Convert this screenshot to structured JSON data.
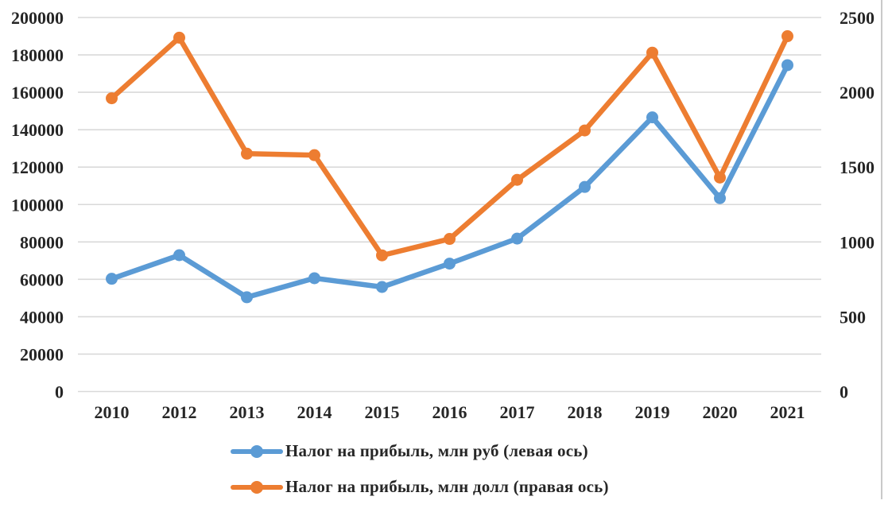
{
  "chart_data": {
    "type": "line",
    "title": "",
    "categories": [
      "2010",
      "2012",
      "2013",
      "2014",
      "2015",
      "2016",
      "2017",
      "2018",
      "2019",
      "2020",
      "2021"
    ],
    "series": [
      {
        "name": "Налог на прибыль, млн руб (левая ось)",
        "axis": "left",
        "color": "#5B9BD5",
        "values": [
          60300,
          72900,
          50400,
          60600,
          55900,
          68400,
          81800,
          109400,
          146600,
          103400,
          174500
        ]
      },
      {
        "name": "Налог на прибыль, млн долл (правая ось)",
        "axis": "right",
        "color": "#ED7D31",
        "values": [
          1960,
          2365,
          1590,
          1580,
          910,
          1020,
          1415,
          1745,
          2265,
          1430,
          2375
        ]
      }
    ],
    "left_axis": {
      "min": 0,
      "max": 200000,
      "step": 20000,
      "tick_labels": [
        "0",
        "20000",
        "40000",
        "60000",
        "80000",
        "100000",
        "120000",
        "140000",
        "160000",
        "180000",
        "200000"
      ]
    },
    "right_axis": {
      "min": 0,
      "max": 2500,
      "step": 500,
      "tick_labels": [
        "0",
        "500",
        "1000",
        "1500",
        "2000",
        "2500"
      ]
    },
    "grid": true,
    "grid_color": "#D9D9D9",
    "text_color": "#262626",
    "legend_position": "bottom-left",
    "marker_style": "circle"
  }
}
